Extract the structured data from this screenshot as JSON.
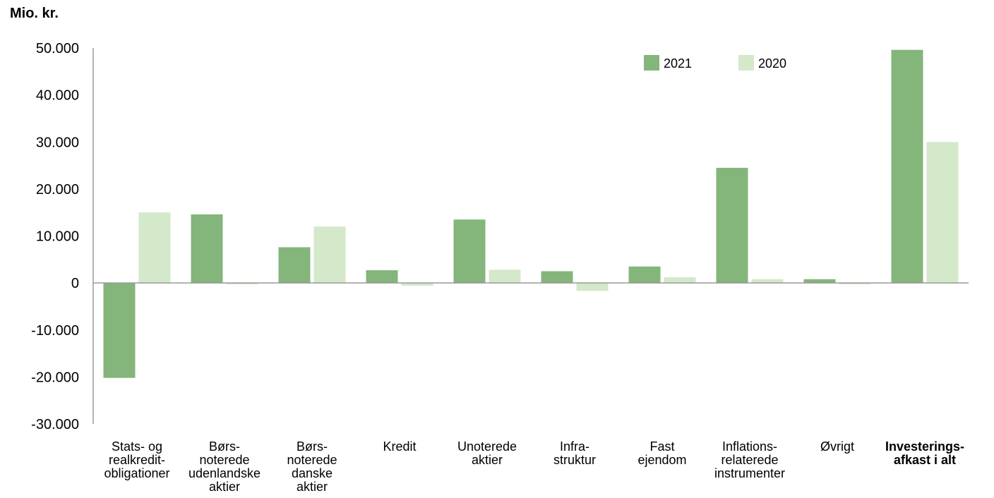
{
  "chart_data": {
    "type": "bar",
    "ylabel": "Mio. kr.",
    "categories": [
      "Stats- og\nrealkredit-\nobligationer",
      "Børs-\nnoterede\nudenlandske\naktier",
      "Børs-\nnoterede\ndanske\naktier",
      "Kredit",
      "Unoterede\naktier",
      "Infra-\nstruktur",
      "Fast\nejendom",
      "Inflations-\nrelaterede\ninstrumenter",
      "Øvrigt",
      "Investerings-\nafkast i alt"
    ],
    "bold_categories": [
      9
    ],
    "series": [
      {
        "name": "2021",
        "color": "#84b57b",
        "values": [
          -20200,
          14600,
          7600,
          2700,
          13500,
          2500,
          3500,
          24500,
          800,
          49600
        ]
      },
      {
        "name": "2020",
        "color": "#d4e8ca",
        "values": [
          15000,
          -300,
          12000,
          -600,
          2800,
          -1700,
          1200,
          800,
          -300,
          30000
        ]
      }
    ],
    "ylim": [
      -30000,
      50000
    ],
    "yticks": [
      50000,
      40000,
      30000,
      20000,
      10000,
      0,
      -10000,
      -20000,
      -30000
    ],
    "ytick_labels": [
      "50.000",
      "40.000",
      "30.000",
      "20.000",
      "10.000",
      "0",
      "-10.000",
      "-20.000",
      "-30.000"
    ],
    "legend_position": "top-right",
    "grid": false
  }
}
